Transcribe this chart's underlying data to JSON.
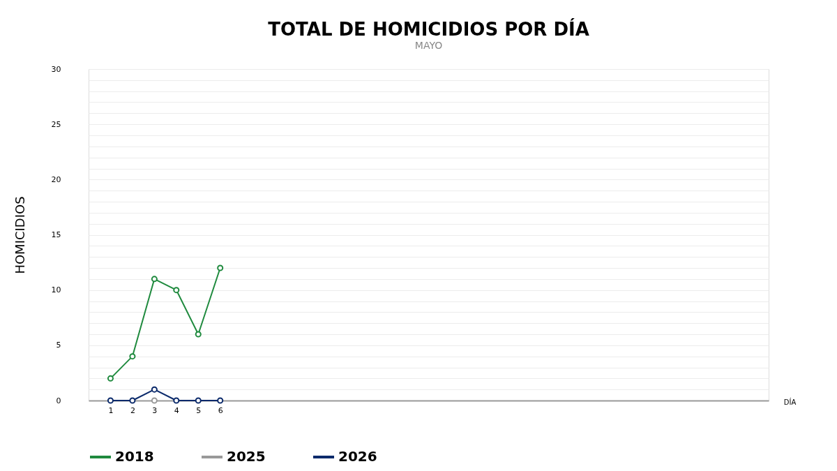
{
  "chart_data": {
    "type": "line",
    "title": "TOTAL DE HOMICIDIOS POR DÍA",
    "subtitle": "MAYO",
    "xlabel": "DÍA",
    "ylabel": "HOMICIDIOS",
    "xlim": [
      0,
      31
    ],
    "xticks": [
      1,
      2,
      3,
      4,
      5,
      6
    ],
    "ylim": [
      0,
      30
    ],
    "yticks": [
      0,
      {
        "value": 1,
        "label": null
      },
      {
        "value": 2,
        "label": null
      },
      {
        "value": 3,
        "label": null
      },
      {
        "value": 4,
        "label": null
      },
      5,
      {
        "value": 6,
        "label": null
      },
      {
        "value": 7,
        "label": null
      },
      {
        "value": 8,
        "label": null
      },
      {
        "value": 9,
        "label": null
      },
      10,
      {
        "value": 11,
        "label": null
      },
      {
        "value": 12,
        "label": null
      },
      {
        "value": 13,
        "label": null
      },
      {
        "value": 14,
        "label": null
      },
      15,
      {
        "value": 16,
        "label": null
      },
      {
        "value": 17,
        "label": null
      },
      {
        "value": 18,
        "label": null
      },
      {
        "value": 19,
        "label": null
      },
      20,
      {
        "value": 21,
        "label": null
      },
      {
        "value": 22,
        "label": null
      },
      {
        "value": 23,
        "label": null
      },
      {
        "value": 24,
        "label": null
      },
      25,
      {
        "value": 26,
        "label": null
      },
      {
        "value": 27,
        "label": null
      },
      {
        "value": 28,
        "label": null
      },
      {
        "value": 29,
        "label": null
      },
      30
    ],
    "grid": "y",
    "legend": "bottom",
    "marker": "circle",
    "line_style": "solid",
    "series": [
      {
        "name": "2018",
        "color": "#1f8a3e",
        "x": [
          1,
          2,
          3,
          4,
          5,
          6
        ],
        "values": [
          2,
          4,
          11,
          10,
          6,
          12
        ]
      },
      {
        "name": "2025",
        "color": "#999999",
        "x": [
          3
        ],
        "values": [
          0
        ]
      },
      {
        "name": "2026",
        "color": "#0b2a6b",
        "x": [
          1,
          2,
          3,
          4,
          5,
          6
        ],
        "values": [
          0,
          0,
          1,
          0,
          0,
          0
        ]
      }
    ]
  }
}
